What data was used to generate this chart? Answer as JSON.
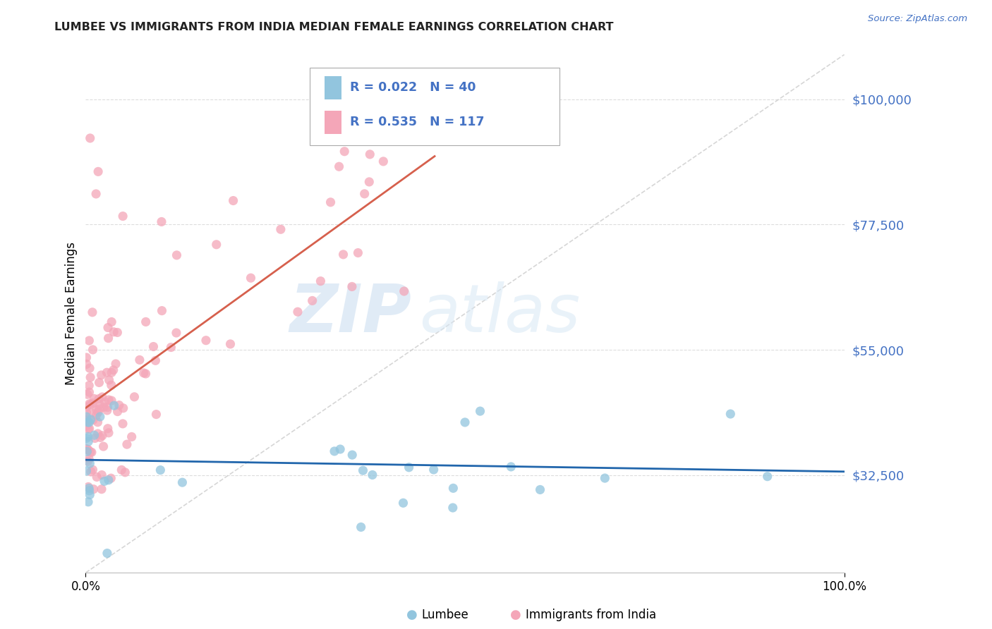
{
  "title": "LUMBEE VS IMMIGRANTS FROM INDIA MEDIAN FEMALE EARNINGS CORRELATION CHART",
  "source": "Source: ZipAtlas.com",
  "ylabel": "Median Female Earnings",
  "yticks": [
    32500,
    55000,
    77500,
    100000
  ],
  "ytick_labels": [
    "$32,500",
    "$55,000",
    "$77,500",
    "$100,000"
  ],
  "watermark_zip": "ZIP",
  "watermark_atlas": "atlas",
  "xlim": [
    0.0,
    1.0
  ],
  "ylim": [
    15000,
    108000
  ],
  "lumbee_R": "R = 0.022",
  "lumbee_N": "N = 40",
  "india_R": "R = 0.535",
  "india_N": "N = 117",
  "lumbee_color": "#92C5DE",
  "india_color": "#F4A6B8",
  "lumbee_line_color": "#2166AC",
  "india_line_color": "#D6604D",
  "diagonal_line_color": "#CCCCCC",
  "grid_color": "#DDDDDD",
  "background_color": "#ffffff",
  "label_color": "#4472C4",
  "title_color": "#222222"
}
